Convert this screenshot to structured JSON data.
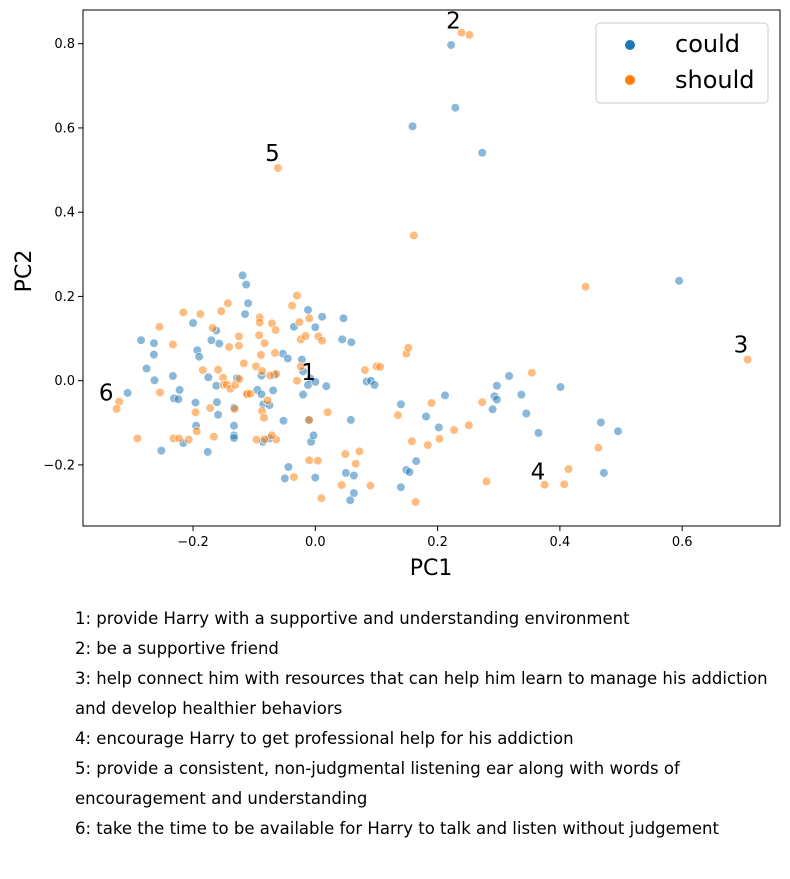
{
  "chart_data": {
    "type": "scatter",
    "xlabel": "PC1",
    "ylabel": "PC2",
    "xlim": [
      -0.38,
      0.76
    ],
    "ylim": [
      -0.345,
      0.88
    ],
    "xticks": [
      -0.2,
      0.0,
      0.2,
      0.4,
      0.6
    ],
    "xtick_labels": [
      "−0.2",
      "0.0",
      "0.2",
      "0.4",
      "0.6"
    ],
    "yticks": [
      -0.2,
      0.0,
      0.2,
      0.4,
      0.6,
      0.8
    ],
    "ytick_labels": [
      "−0.2",
      "0.0",
      "0.2",
      "0.4",
      "0.6",
      "0.8"
    ],
    "grid": false,
    "legend_position": "top-right",
    "series": [
      {
        "name": "could",
        "color": "#1f77b4",
        "points": [
          [
            0.222,
            0.797
          ],
          [
            0.229,
            0.648
          ],
          [
            0.159,
            0.604
          ],
          [
            0.273,
            0.541
          ],
          [
            0.595,
            0.237
          ],
          [
            -0.119,
            0.25
          ],
          [
            -0.113,
            0.228
          ],
          [
            -0.11,
            0.184
          ],
          [
            -0.115,
            0.158
          ],
          [
            -0.2,
            0.137
          ],
          [
            -0.162,
            0.119
          ],
          [
            -0.17,
            0.096
          ],
          [
            -0.157,
            0.088
          ],
          [
            -0.285,
            0.096
          ],
          [
            -0.264,
            0.089
          ],
          [
            -0.264,
            0.062
          ],
          [
            -0.193,
            0.072
          ],
          [
            -0.19,
            0.057
          ],
          [
            -0.276,
            0.029
          ],
          [
            -0.307,
            -0.029
          ],
          [
            -0.233,
            0.011
          ],
          [
            -0.222,
            -0.022
          ],
          [
            -0.263,
            0.001
          ],
          [
            -0.231,
            -0.042
          ],
          [
            -0.224,
            -0.044
          ],
          [
            -0.196,
            -0.052
          ],
          [
            -0.175,
            0.008
          ],
          [
            -0.162,
            -0.012
          ],
          [
            -0.195,
            -0.107
          ],
          [
            -0.216,
            -0.148
          ],
          [
            -0.252,
            -0.166
          ],
          [
            -0.176,
            -0.169
          ],
          [
            -0.161,
            -0.051
          ],
          [
            -0.159,
            -0.081
          ],
          [
            -0.133,
            -0.064
          ],
          [
            -0.133,
            -0.107
          ],
          [
            -0.133,
            -0.13
          ],
          [
            -0.133,
            -0.136
          ],
          [
            -0.128,
            0.006
          ],
          [
            -0.095,
            -0.022
          ],
          [
            -0.088,
            -0.032
          ],
          [
            -0.085,
            -0.056
          ],
          [
            -0.088,
            0.012
          ],
          [
            -0.075,
            -0.058
          ],
          [
            -0.069,
            -0.023
          ],
          [
            -0.067,
            0.014
          ],
          [
            -0.053,
            0.064
          ],
          [
            -0.045,
            0.053
          ],
          [
            -0.035,
            0.128
          ],
          [
            -0.022,
            0.05
          ],
          [
            -0.02,
            -0.033
          ],
          [
            -0.012,
            0.168
          ],
          [
            0.0,
            0.127
          ],
          [
            0.011,
            0.152
          ],
          [
            -0.02,
            0.022
          ],
          [
            -0.008,
            0.005
          ],
          [
            -0.012,
            -0.01
          ],
          [
            0.0,
            -0.003
          ],
          [
            0.018,
            -0.013
          ],
          [
            -0.075,
            -0.137
          ],
          [
            -0.086,
            -0.145
          ],
          [
            -0.052,
            -0.095
          ],
          [
            -0.044,
            -0.205
          ],
          [
            -0.05,
            -0.232
          ],
          [
            -0.011,
            -0.094
          ],
          [
            -0.007,
            -0.145
          ],
          [
            -0.003,
            -0.13
          ],
          [
            0.0,
            -0.23
          ],
          [
            0.046,
            0.148
          ],
          [
            0.059,
            0.091
          ],
          [
            0.044,
            0.098
          ],
          [
            0.084,
            -0.002
          ],
          [
            0.091,
            0.0
          ],
          [
            0.097,
            -0.01
          ],
          [
            0.058,
            -0.093
          ],
          [
            0.05,
            -0.219
          ],
          [
            0.063,
            -0.225
          ],
          [
            0.063,
            -0.267
          ],
          [
            0.057,
            -0.284
          ],
          [
            0.14,
            -0.056
          ],
          [
            0.149,
            -0.212
          ],
          [
            0.154,
            -0.217
          ],
          [
            0.165,
            -0.191
          ],
          [
            0.14,
            -0.253
          ],
          [
            0.181,
            -0.085
          ],
          [
            0.202,
            -0.111
          ],
          [
            0.212,
            -0.035
          ],
          [
            0.293,
            -0.037
          ],
          [
            0.297,
            -0.045
          ],
          [
            0.29,
            -0.068
          ],
          [
            0.297,
            -0.012
          ],
          [
            0.317,
            0.011
          ],
          [
            0.337,
            -0.033
          ],
          [
            0.345,
            -0.078
          ],
          [
            0.365,
            -0.124
          ],
          [
            0.401,
            -0.015
          ],
          [
            0.467,
            -0.099
          ],
          [
            0.472,
            -0.219
          ],
          [
            0.495,
            -0.12
          ]
        ]
      },
      {
        "name": "should",
        "color": "#ff7f0e",
        "points": [
          [
            0.239,
            0.826
          ],
          [
            0.252,
            0.821
          ],
          [
            -0.061,
            0.505
          ],
          [
            0.161,
            0.345
          ],
          [
            0.442,
            0.223
          ],
          [
            0.707,
            0.05
          ],
          [
            -0.321,
            -0.05
          ],
          [
            -0.325,
            -0.067
          ],
          [
            -0.291,
            -0.137
          ],
          [
            -0.254,
            -0.028
          ],
          [
            -0.255,
            0.128
          ],
          [
            -0.233,
            0.086
          ],
          [
            -0.216,
            0.162
          ],
          [
            -0.188,
            0.158
          ],
          [
            -0.154,
            0.165
          ],
          [
            -0.143,
            0.184
          ],
          [
            -0.168,
            0.125
          ],
          [
            -0.141,
            0.08
          ],
          [
            -0.125,
            0.105
          ],
          [
            -0.125,
            0.083
          ],
          [
            -0.091,
            0.15
          ],
          [
            -0.091,
            0.138
          ],
          [
            -0.071,
            0.136
          ],
          [
            -0.083,
            0.089
          ],
          [
            -0.092,
            0.108
          ],
          [
            -0.065,
            0.12
          ],
          [
            -0.066,
            0.066
          ],
          [
            -0.089,
            0.061
          ],
          [
            -0.038,
            0.178
          ],
          [
            -0.03,
            0.202
          ],
          [
            -0.026,
            0.139
          ],
          [
            -0.024,
            0.098
          ],
          [
            -0.016,
            0.106
          ],
          [
            -0.01,
            0.148
          ],
          [
            0.005,
            0.105
          ],
          [
            0.011,
            0.095
          ],
          [
            -0.184,
            0.025
          ],
          [
            -0.159,
            0.026
          ],
          [
            -0.151,
            0.007
          ],
          [
            -0.15,
            -0.01
          ],
          [
            -0.145,
            -0.009
          ],
          [
            -0.139,
            -0.019
          ],
          [
            -0.131,
            -0.01
          ],
          [
            -0.124,
            0.004
          ],
          [
            -0.117,
            0.041
          ],
          [
            -0.111,
            -0.03
          ],
          [
            -0.097,
            0.034
          ],
          [
            -0.087,
            0.023
          ],
          [
            -0.064,
            0.016
          ],
          [
            -0.074,
            0.012
          ],
          [
            -0.024,
            0.034
          ],
          [
            -0.03,
            0.0
          ],
          [
            -0.172,
            -0.065
          ],
          [
            -0.196,
            -0.075
          ],
          [
            -0.194,
            -0.12
          ],
          [
            -0.166,
            -0.133
          ],
          [
            -0.132,
            -0.067
          ],
          [
            -0.112,
            -0.032
          ],
          [
            -0.106,
            -0.031
          ],
          [
            -0.087,
            -0.072
          ],
          [
            -0.084,
            -0.088
          ],
          [
            -0.078,
            -0.047
          ],
          [
            -0.096,
            -0.14
          ],
          [
            -0.083,
            -0.139
          ],
          [
            -0.064,
            -0.14
          ],
          [
            -0.071,
            -0.13
          ],
          [
            -0.232,
            -0.137
          ],
          [
            -0.223,
            -0.137
          ],
          [
            -0.207,
            -0.14
          ],
          [
            -0.035,
            -0.229
          ],
          [
            -0.01,
            -0.189
          ],
          [
            0.004,
            -0.19
          ],
          [
            0.01,
            -0.279
          ],
          [
            0.02,
            -0.075
          ],
          [
            0.049,
            -0.174
          ],
          [
            0.066,
            -0.197
          ],
          [
            0.072,
            -0.168
          ],
          [
            0.081,
            0.025
          ],
          [
            0.09,
            -0.249
          ],
          [
            0.043,
            -0.248
          ],
          [
            -0.01,
            -0.093
          ],
          [
            0.1,
            0.034
          ],
          [
            0.106,
            0.033
          ],
          [
            0.135,
            -0.082
          ],
          [
            0.149,
            0.064
          ],
          [
            0.152,
            0.078
          ],
          [
            0.158,
            -0.144
          ],
          [
            0.164,
            -0.288
          ],
          [
            0.184,
            -0.153
          ],
          [
            0.19,
            -0.053
          ],
          [
            0.203,
            -0.138
          ],
          [
            0.227,
            -0.117
          ],
          [
            0.251,
            -0.106
          ],
          [
            0.273,
            -0.051
          ],
          [
            0.28,
            -0.239
          ],
          [
            0.354,
            0.019
          ],
          [
            0.375,
            -0.247
          ],
          [
            0.407,
            -0.246
          ],
          [
            0.414,
            -0.21
          ],
          [
            0.463,
            -0.159
          ]
        ]
      }
    ],
    "annotations": [
      {
        "text": "1",
        "x": -0.011,
        "y": 0.002
      },
      {
        "text": "2",
        "x": 0.226,
        "y": 0.836
      },
      {
        "text": "3",
        "x": 0.696,
        "y": 0.067
      },
      {
        "text": "4",
        "x": 0.364,
        "y": -0.235
      },
      {
        "text": "5",
        "x": -0.07,
        "y": 0.521
      },
      {
        "text": "6",
        "x": -0.342,
        "y": -0.047
      }
    ]
  },
  "captions": [
    "1: provide Harry with a supportive and understanding environment",
    "2: be a supportive friend",
    "3: help connect him with resources that can help him learn to manage his addiction and develop healthier behaviors",
    "4: encourage Harry to get professional help for his addiction",
    "5: provide a consistent, non-judgmental listening ear along with words of encouragement and understanding",
    "6: take the time to be available for Harry to talk and listen without judgement"
  ]
}
